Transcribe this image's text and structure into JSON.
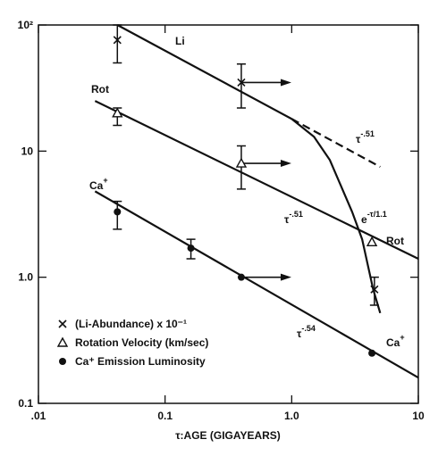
{
  "chart_data": {
    "type": "scatter",
    "xlabel": "τ:AGE (GIGAYEARS)",
    "xscale": "log",
    "yscale": "log",
    "xlim": [
      0.01,
      10
    ],
    "ylim": [
      0.1,
      100
    ],
    "xticks": [
      {
        "value": 0.01,
        "label": ".01"
      },
      0.1,
      {
        "value": 1,
        "label": "1.0"
      },
      10
    ],
    "yticks": [
      0.1,
      {
        "value": 1,
        "label": "1.0"
      },
      10,
      {
        "value": 100,
        "label": "10²"
      }
    ],
    "series": [
      {
        "name": "(Li-Abundance) x 10⁻¹",
        "marker": "x",
        "color": "#111",
        "x": [
          0.042,
          0.4,
          4.5
        ],
        "values": [
          76,
          35,
          0.8
        ],
        "ylow": [
          50,
          22,
          0.6
        ],
        "yhigh": [
          100,
          49,
          1.0
        ],
        "arrow": [
          false,
          true,
          false
        ]
      },
      {
        "name": "Rotation Velocity (km/sec)",
        "marker": "triangle",
        "color": "#111",
        "x": [
          0.042,
          0.4,
          4.3
        ],
        "values": [
          20,
          8,
          1.9
        ],
        "ylow": [
          16,
          5,
          null
        ],
        "yhigh": [
          22,
          11,
          null
        ],
        "arrow": [
          false,
          true,
          false
        ]
      },
      {
        "name": "Ca⁺ Emission Luminosity",
        "marker": "circle",
        "color": "#111",
        "x": [
          0.042,
          0.16,
          0.4,
          4.3
        ],
        "values": [
          3.3,
          1.7,
          1.0,
          0.25
        ],
        "ylow": [
          2.4,
          1.4,
          null,
          null
        ],
        "yhigh": [
          4,
          2.0,
          null,
          null
        ],
        "arrow": [
          false,
          false,
          true,
          false
        ]
      }
    ],
    "lines": [
      {
        "x": [
          0.042,
          1.0
        ],
        "y": [
          100,
          18
        ],
        "dashed": false
      },
      {
        "x": [
          1.0,
          5
        ],
        "y": [
          18,
          7.5
        ],
        "dashed": true
      },
      {
        "x": [
          1.0,
          1.5,
          2,
          3,
          3.6,
          4.4,
          5
        ],
        "y": [
          18,
          13,
          8.5,
          3.3,
          2,
          0.8,
          0.52
        ],
        "dashed": false
      },
      {
        "x": [
          0.028,
          10
        ],
        "y": [
          25,
          1.4
        ],
        "dashed": false
      },
      {
        "x": [
          0.028,
          10
        ],
        "y": [
          4.8,
          0.16
        ],
        "dashed": false
      }
    ],
    "annotations": [
      {
        "text": "Li"
      },
      {
        "text": "Rot"
      },
      {
        "text": "Ca",
        "sup": "+"
      },
      {
        "text": "τ",
        "sup": "-.51"
      },
      {
        "text": "e",
        "sup": "-τ/1.1"
      },
      {
        "text": "τ",
        "sup": "-.51"
      },
      {
        "text": "Rot"
      },
      {
        "text": "τ",
        "sup": "-.54"
      },
      {
        "text": "Ca",
        "sup": "+"
      }
    ]
  }
}
